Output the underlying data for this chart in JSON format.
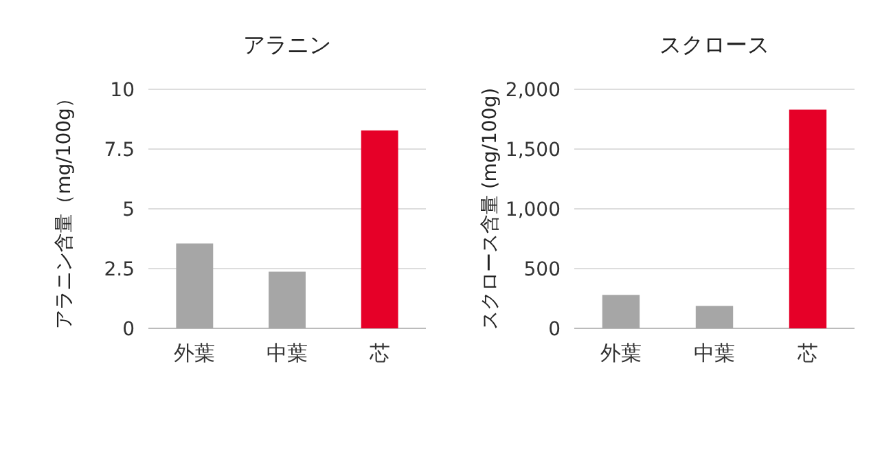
{
  "chart_data": [
    {
      "type": "bar",
      "title": "アラニン",
      "ylabel": "アラニン含量（mg/100g）",
      "categories": [
        "外葉",
        "中葉",
        "芯"
      ],
      "values": [
        3.55,
        2.37,
        8.28
      ],
      "colors": [
        "#a6a6a6",
        "#a6a6a6",
        "#e60028"
      ],
      "ylim": [
        0,
        10
      ],
      "yticks": [
        0,
        2.5,
        5,
        7.5,
        10
      ],
      "grid": "y"
    },
    {
      "type": "bar",
      "title": "スクロース",
      "ylabel": "スクロース含量 (mg/100g)",
      "categories": [
        "外葉",
        "中葉",
        "芯"
      ],
      "values": [
        280,
        188,
        1830
      ],
      "colors": [
        "#a6a6a6",
        "#a6a6a6",
        "#e60028"
      ],
      "ylim": [
        0,
        2000
      ],
      "yticks": [
        0,
        {
          "value": 500,
          "label": "500"
        },
        {
          "value": 1000,
          "label": "1,000"
        },
        {
          "value": 1500,
          "label": "1,500"
        },
        {
          "value": 2000,
          "label": "2,000"
        }
      ],
      "grid": "y"
    }
  ]
}
